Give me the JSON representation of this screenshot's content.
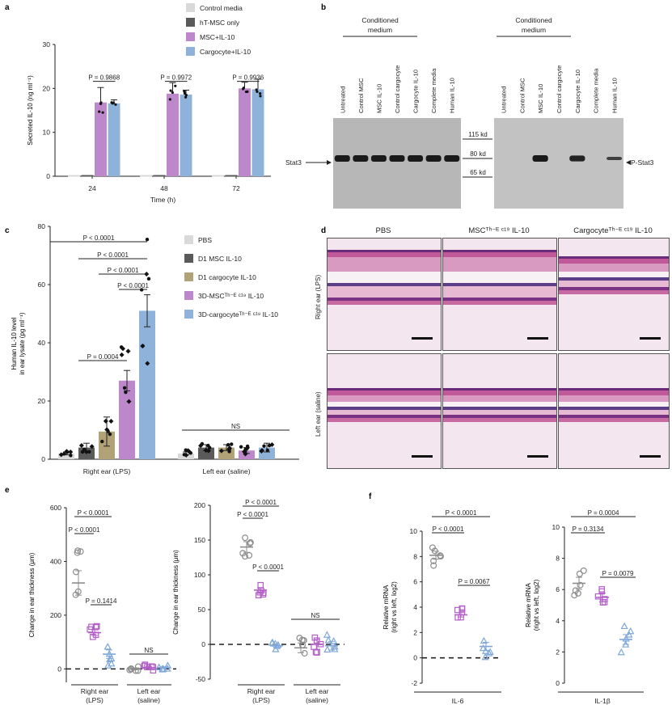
{
  "colors": {
    "ctrl_media": "#d9d9d9",
    "ht_msc": "#5a5a5a",
    "msc": "#bd87cb",
    "cargo": "#8fb2db",
    "pbs": "#d9d9d9",
    "d1msc": "#5a5a5a",
    "d1cargo": "#b1a277",
    "gray_pt": "#8c8c8c",
    "purple_pt": "#b45fc8",
    "blue_pt": "#7fa8d8"
  },
  "panel_labels": {
    "a": "a",
    "b": "b",
    "c": "c",
    "d": "d",
    "e": "e",
    "f": "f"
  },
  "chart_data": [
    {
      "id": "a",
      "type": "bar",
      "categories": [
        "24",
        "48",
        "72"
      ],
      "series": [
        {
          "name": "Control media",
          "values": [
            0,
            0,
            0
          ]
        },
        {
          "name": "hT-MSC only",
          "values": [
            0,
            0,
            0
          ]
        },
        {
          "name": "MSC+IL-10",
          "values": [
            16.8,
            18.8,
            20.0
          ]
        },
        {
          "name": "Cargocyte+IL-10",
          "values": [
            16.6,
            18.6,
            19.8
          ]
        }
      ],
      "errors": [
        [
          0,
          0,
          0
        ],
        [
          0,
          0,
          0
        ],
        [
          3.4,
          2.5,
          1.4
        ],
        [
          0.8,
          1.0,
          2.3
        ]
      ],
      "pvalues": [
        "P = 0.9868",
        "P = 0.9972",
        "P = 0.9936"
      ],
      "ylabel": "Secreted IL-10 (ng ml⁻¹)",
      "xlabel": "Time (h)",
      "ylim": [
        0,
        30
      ],
      "yticks": [
        "0",
        "10",
        "20",
        "30"
      ]
    },
    {
      "id": "c",
      "type": "bar",
      "group_labels": [
        "Right ear (LPS)",
        "Left ear (saline)"
      ],
      "series": [
        {
          "name": "PBS",
          "values": [
            2,
            2
          ]
        },
        {
          "name": "D1 MSC IL-10",
          "values": [
            4,
            4
          ]
        },
        {
          "name": "D1 cargocyte IL-10",
          "values": [
            9.5,
            4
          ]
        },
        {
          "name": "3D-MSCᵀʰ⁻ᴱ ᶜ¹⁹ IL-10",
          "values": [
            27,
            3
          ]
        },
        {
          "name": "3D-cargocyteᵀʰ⁻ᴱ ᶜ¹⁹ IL-10",
          "values": [
            51,
            4
          ]
        }
      ],
      "errors": [
        [
          0.5,
          0.5
        ],
        [
          1.5,
          1
        ],
        [
          5,
          1
        ],
        [
          3.5,
          1
        ],
        [
          5.5,
          1.5
        ]
      ],
      "pvalues": [
        "P < 0.0001",
        "P < 0.0001",
        "P < 0.0001",
        "P < 0.0001",
        "P = 0.0004"
      ],
      "ns_label": "NS",
      "ylabel_lines": [
        "Human IL-10 level",
        "in ear lysate (pg ml⁻¹)"
      ],
      "ylim": [
        0,
        80
      ],
      "yticks": [
        "0",
        "20",
        "40",
        "60",
        "80"
      ]
    },
    {
      "id": "e1",
      "type": "scatter",
      "groups": [
        "Right ear (LPS)",
        "Left ear (saline)"
      ],
      "series": [
        {
          "name": "PBS",
          "means": [
            320,
            0
          ]
        },
        {
          "name": "MSC IL-10",
          "means": [
            135,
            5
          ]
        },
        {
          "name": "Cargocyte IL-10",
          "means": [
            55,
            5
          ]
        }
      ],
      "pvalues": [
        "P < 0.0001",
        "P < 0.0001",
        "P = 0.1414"
      ],
      "ns_label": "NS",
      "ylabel": "Change in ear thickness (μm)",
      "ylim": [
        -50,
        600
      ],
      "yticks": [
        "0",
        "200",
        "400",
        "600"
      ]
    },
    {
      "id": "e2",
      "type": "scatter",
      "groups": [
        "Right ear (LPS)",
        "Left ear (saline)"
      ],
      "series": [
        {
          "name": "PBS",
          "means": [
            140,
            -5
          ]
        },
        {
          "name": "MSC IL-10",
          "means": [
            78,
            0
          ]
        },
        {
          "name": "Cargocyte IL-10",
          "means": [
            -2,
            -2
          ]
        }
      ],
      "pvalues": [
        "P < 0.0001",
        "P < 0.0001",
        "P < 0.0001"
      ],
      "ns_label": "NS",
      "ylabel": "Change in ear thickness (μm)",
      "ylim": [
        -50,
        200
      ],
      "yticks": [
        "-50",
        "0",
        "50",
        "100",
        "150",
        "200"
      ]
    },
    {
      "id": "f1",
      "type": "scatter",
      "series": [
        {
          "name": "PBS",
          "mean": 8.1
        },
        {
          "name": "MSC IL-10",
          "mean": 3.4
        },
        {
          "name": "Cargocyte IL-10",
          "mean": 0.9
        }
      ],
      "pvalues": [
        "P < 0.0001",
        "P < 0.0001",
        "P = 0.0067"
      ],
      "ylabel_lines": [
        "Relative mRNA",
        "(right vs left, log2)"
      ],
      "xlabel": "IL-6",
      "ylim": [
        -2,
        10
      ],
      "yticks": [
        "-2",
        "0",
        "2",
        "4",
        "6",
        "8",
        "10"
      ]
    },
    {
      "id": "f2",
      "type": "scatter",
      "series": [
        {
          "name": "PBS",
          "mean": 6.4
        },
        {
          "name": "MSC IL-10",
          "mean": 5.5
        },
        {
          "name": "Cargocyte IL-10",
          "mean": 2.8
        }
      ],
      "pvalues": [
        "P = 0.0004",
        "P = 0.3134",
        "P = 0.0079"
      ],
      "ylabel_lines": [
        "Relative mRNA",
        "(right vs left, log2)"
      ],
      "xlabel": "IL-1β",
      "ylim": [
        0,
        10
      ],
      "yticks": [
        "0",
        "2",
        "4",
        "6",
        "8",
        "10"
      ]
    }
  ],
  "blot": {
    "header": "Conditioned medium",
    "lanes_left": [
      "Untreated",
      "Control MSC",
      "MSC IL-10",
      "Control cargocyte",
      "Cargocyte IL-10",
      "Complete media",
      "Human IL-10"
    ],
    "lanes_right": [
      "Untreated",
      "Control MSC",
      "MSC IL-10",
      "Control cargocyte",
      "Cargocyte IL-10",
      "Complete media",
      "Human IL-10"
    ],
    "markers": [
      "115 kd",
      "80 kd",
      "65 kd"
    ],
    "left_label": "Stat3",
    "right_label": "P-Stat3",
    "intensity_left": [
      1,
      1,
      1,
      1,
      1,
      1,
      1
    ],
    "intensity_right": [
      0,
      0,
      1,
      0,
      0.9,
      0,
      0.5
    ]
  },
  "histology": {
    "columns": [
      "PBS",
      "MSCᵀʰ⁻ᴱ ᶜ¹⁹ IL-10",
      "Cargocyteᵀʰ⁻ᴱ ᶜ¹⁹ IL-10"
    ],
    "rows": [
      "Right ear (LPS)",
      "Left ear (saline)"
    ]
  }
}
